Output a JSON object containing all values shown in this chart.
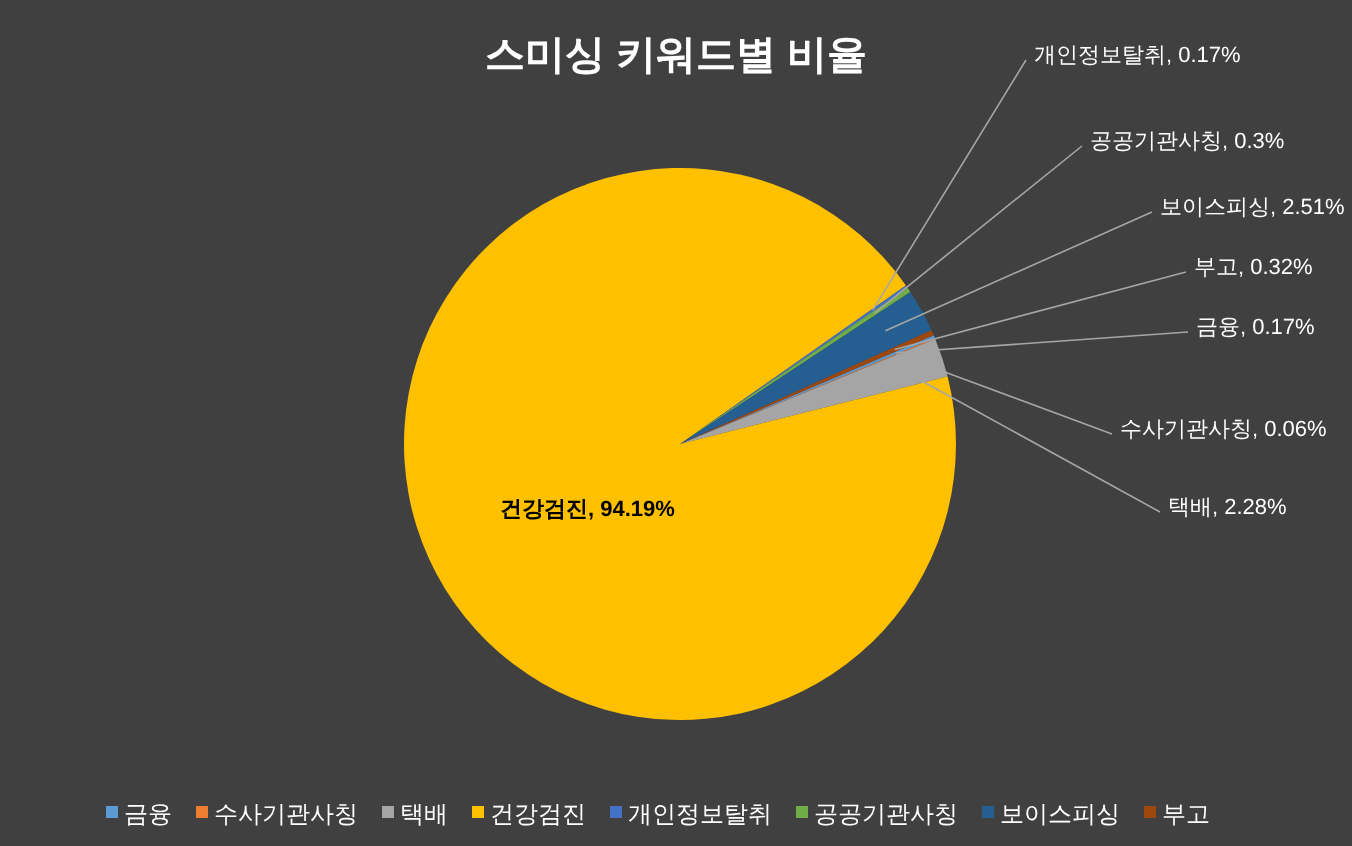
{
  "chart_data": {
    "type": "pie",
    "title": "스미싱 키워드별 비율",
    "categories": [
      "금융",
      "수사기관사칭",
      "택배",
      "건강검진",
      "개인정보탈취",
      "공공기관사칭",
      "보이스피싱",
      "부고"
    ],
    "values": [
      0.17,
      0.06,
      2.28,
      94.19,
      0.17,
      0.3,
      2.51,
      0.32
    ],
    "colors": [
      "#5b9bd5",
      "#ed7d31",
      "#a5a5a5",
      "#ffc000",
      "#4472c4",
      "#70ad47",
      "#255e91",
      "#9e480e"
    ],
    "value_labels": [
      ", 0.17%",
      ", 0.06%",
      ", 2.28%",
      ", 94.19%",
      ", 0.17%",
      ", 0.3%",
      ", 2.51%",
      ", 0.32%"
    ],
    "legend": "bottom"
  }
}
